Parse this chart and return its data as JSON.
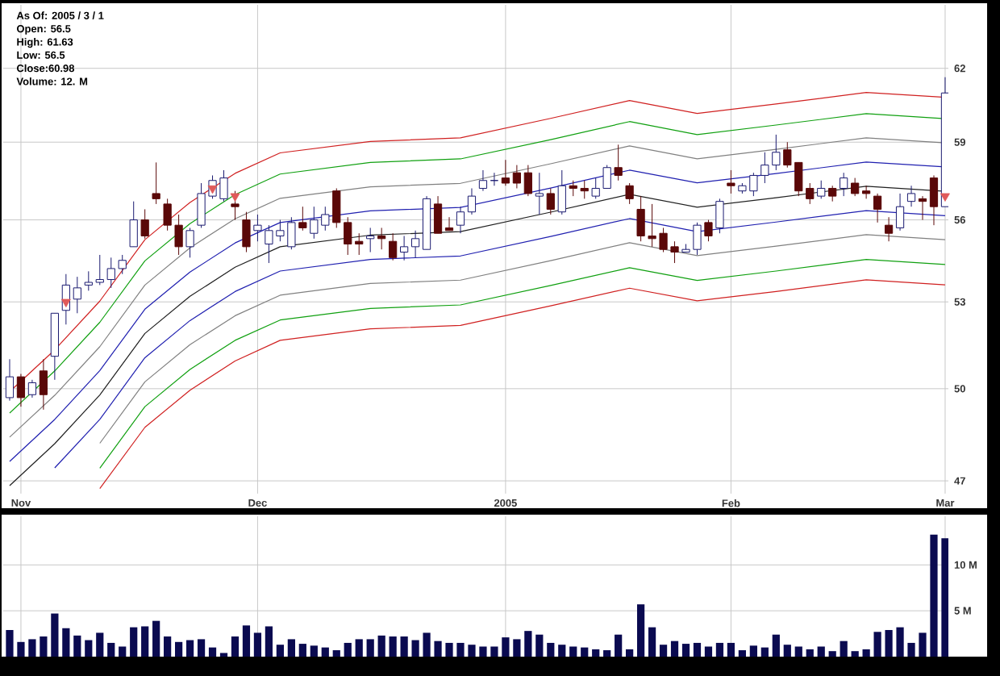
{
  "chart_data": [
    {
      "type": "candlestick",
      "log": true,
      "ylim": [
        46.6,
        64.7
      ],
      "yticks": [
        47,
        50,
        53,
        56,
        59,
        62
      ],
      "grid": true,
      "annotations": [
        "As Of: 2005 / 3 / 1",
        "Open: 56.5",
        "High: 61.63",
        "Low: 56.5",
        "Close:60.98",
        "Volume: 12. M"
      ],
      "categories": [
        null,
        "Nov",
        null,
        null,
        null,
        null,
        null,
        null,
        null,
        null,
        null,
        null,
        null,
        null,
        null,
        null,
        null,
        null,
        null,
        null,
        null,
        null,
        "Dec",
        null,
        null,
        null,
        null,
        null,
        null,
        null,
        null,
        null,
        null,
        null,
        null,
        null,
        null,
        null,
        null,
        null,
        null,
        null,
        null,
        null,
        "2005",
        null,
        null,
        null,
        null,
        null,
        null,
        null,
        null,
        null,
        null,
        null,
        null,
        null,
        null,
        null,
        null,
        null,
        null,
        null,
        "Feb",
        null,
        null,
        null,
        null,
        null,
        null,
        null,
        null,
        null,
        null,
        null,
        null,
        null,
        null,
        null,
        null,
        null,
        null,
        "Mar"
      ],
      "ohlc": [
        [
          49.7,
          51.0,
          49.6,
          50.4
        ],
        [
          50.4,
          50.5,
          49.4,
          49.7
        ],
        [
          49.8,
          50.3,
          49.7,
          50.2
        ],
        [
          50.6,
          51.0,
          49.3,
          49.8
        ],
        [
          51.1,
          52.6,
          50.3,
          52.6
        ],
        [
          52.7,
          54.0,
          52.2,
          53.6
        ],
        [
          53.1,
          53.9,
          52.6,
          53.5
        ],
        [
          53.6,
          54.1,
          53.4,
          53.7
        ],
        [
          53.7,
          54.7,
          53.6,
          53.8
        ],
        [
          53.8,
          54.6,
          53.5,
          54.2
        ],
        [
          54.2,
          54.7,
          54.0,
          54.5
        ],
        [
          55.0,
          56.7,
          55.0,
          56.0
        ],
        [
          56.0,
          56.4,
          55.3,
          55.4
        ],
        [
          57.0,
          58.2,
          56.6,
          56.8
        ],
        [
          56.6,
          56.8,
          55.6,
          55.8
        ],
        [
          55.8,
          56.2,
          54.7,
          55.0
        ],
        [
          55.0,
          55.7,
          54.6,
          55.6
        ],
        [
          55.8,
          57.4,
          55.7,
          57.0
        ],
        [
          56.9,
          57.7,
          56.8,
          57.5
        ],
        [
          56.8,
          57.9,
          56.7,
          57.6
        ],
        [
          56.6,
          57.1,
          56.0,
          56.5
        ],
        [
          56.0,
          56.3,
          54.8,
          55.0
        ],
        [
          55.6,
          56.2,
          55.2,
          55.8
        ],
        [
          55.1,
          55.8,
          54.4,
          55.6
        ],
        [
          55.4,
          56.0,
          55.2,
          55.6
        ],
        [
          55.0,
          56.1,
          54.9,
          55.9
        ],
        [
          55.9,
          56.5,
          55.6,
          55.7
        ],
        [
          55.5,
          56.5,
          55.3,
          56.0
        ],
        [
          55.8,
          56.5,
          55.6,
          56.2
        ],
        [
          57.1,
          57.2,
          55.7,
          55.9
        ],
        [
          55.9,
          56.1,
          54.7,
          55.1
        ],
        [
          55.2,
          55.5,
          54.7,
          55.1
        ],
        [
          55.3,
          55.7,
          54.8,
          55.4
        ],
        [
          55.4,
          55.7,
          54.9,
          55.3
        ],
        [
          55.2,
          55.5,
          54.5,
          54.6
        ],
        [
          54.8,
          55.4,
          54.5,
          55.0
        ],
        [
          55.0,
          55.6,
          54.6,
          55.3
        ],
        [
          54.9,
          56.9,
          54.9,
          56.8
        ],
        [
          56.6,
          56.9,
          55.5,
          55.5
        ],
        [
          55.7,
          56.1,
          55.6,
          55.6
        ],
        [
          55.8,
          56.5,
          55.5,
          56.3
        ],
        [
          56.3,
          57.2,
          56.2,
          56.9
        ],
        [
          57.2,
          57.9,
          57.1,
          57.5
        ],
        [
          57.5,
          57.8,
          57.3,
          57.5
        ],
        [
          57.6,
          58.3,
          57.3,
          57.4
        ],
        [
          57.8,
          58.1,
          57.2,
          57.4
        ],
        [
          57.8,
          58.1,
          56.9,
          57.0
        ],
        [
          56.9,
          57.8,
          56.2,
          57.0
        ],
        [
          57.0,
          57.2,
          56.2,
          56.4
        ],
        [
          56.3,
          57.9,
          56.2,
          57.3
        ],
        [
          57.3,
          57.5,
          56.9,
          57.2
        ],
        [
          57.2,
          57.5,
          56.8,
          57.1
        ],
        [
          56.9,
          57.6,
          56.8,
          57.2
        ],
        [
          57.2,
          58.1,
          57.2,
          58.0
        ],
        [
          58.0,
          58.9,
          57.5,
          57.7
        ],
        [
          57.3,
          57.4,
          56.6,
          56.8
        ],
        [
          56.4,
          56.9,
          55.2,
          55.4
        ],
        [
          55.4,
          56.6,
          55.0,
          55.3
        ],
        [
          55.5,
          55.7,
          54.8,
          54.9
        ],
        [
          55.0,
          55.2,
          54.4,
          54.8
        ],
        [
          54.8,
          55.1,
          54.8,
          54.9
        ],
        [
          54.9,
          55.9,
          54.7,
          55.8
        ],
        [
          55.9,
          56.0,
          55.2,
          55.4
        ],
        [
          55.7,
          56.8,
          55.5,
          56.7
        ],
        [
          57.4,
          57.9,
          57.0,
          57.3
        ],
        [
          57.1,
          57.4,
          57.0,
          57.3
        ],
        [
          57.1,
          57.8,
          56.9,
          57.7
        ],
        [
          57.7,
          58.6,
          57.4,
          58.1
        ],
        [
          58.1,
          59.3,
          57.9,
          58.6
        ],
        [
          58.7,
          59.0,
          58.0,
          58.1
        ],
        [
          58.2,
          58.2,
          56.9,
          57.1
        ],
        [
          57.2,
          57.4,
          56.6,
          56.8
        ],
        [
          56.9,
          57.5,
          56.8,
          57.2
        ],
        [
          57.2,
          57.3,
          56.7,
          56.9
        ],
        [
          57.2,
          57.8,
          56.9,
          57.6
        ],
        [
          57.4,
          57.6,
          56.9,
          57.0
        ],
        [
          57.1,
          57.3,
          56.8,
          57.0
        ],
        [
          56.9,
          57.0,
          55.9,
          56.4
        ],
        [
          55.8,
          56.1,
          55.2,
          55.5
        ],
        [
          55.7,
          57.0,
          55.6,
          56.5
        ],
        [
          56.7,
          57.3,
          56.5,
          57.0
        ],
        [
          56.8,
          56.9,
          56.0,
          56.7
        ],
        [
          57.6,
          57.7,
          55.8,
          56.5
        ],
        [
          56.5,
          61.63,
          56.5,
          60.98
        ]
      ],
      "series": [
        {
          "type": "line",
          "color": "#d02020",
          "values": [
            49.9,
            null,
            null,
            null,
            51.32,
            null,
            null,
            null,
            53.03,
            null,
            null,
            null,
            55.26,
            null,
            null,
            null,
            56.66,
            null,
            null,
            null,
            57.78,
            null,
            null,
            null,
            58.58,
            null,
            null,
            null,
            null,
            null,
            null,
            null,
            59.03,
            null,
            null,
            null,
            null,
            null,
            null,
            null,
            59.17,
            null,
            null,
            null,
            null,
            null,
            null,
            null,
            59.95,
            null,
            null,
            null,
            null,
            null,
            null,
            60.67,
            null,
            null,
            null,
            null,
            null,
            60.15,
            null,
            null,
            null,
            null,
            null,
            null,
            60.53,
            null,
            null,
            null,
            null,
            null,
            null,
            null,
            61.0,
            null,
            null,
            null,
            null,
            null,
            null,
            60.8
          ]
        },
        {
          "type": "line",
          "color": "#10a010",
          "values": [
            49.19,
            null,
            null,
            null,
            50.6,
            null,
            null,
            null,
            52.28,
            null,
            null,
            null,
            54.48,
            null,
            null,
            null,
            55.86,
            null,
            null,
            null,
            56.96,
            null,
            null,
            null,
            57.75,
            null,
            null,
            null,
            null,
            null,
            null,
            null,
            58.2,
            null,
            null,
            null,
            null,
            null,
            null,
            null,
            58.34,
            null,
            null,
            null,
            null,
            null,
            null,
            null,
            59.1,
            null,
            null,
            null,
            null,
            null,
            null,
            59.82,
            null,
            null,
            null,
            null,
            null,
            59.3,
            null,
            null,
            null,
            null,
            null,
            null,
            59.68,
            null,
            null,
            null,
            null,
            null,
            null,
            null,
            60.14,
            null,
            null,
            null,
            null,
            null,
            null,
            59.94
          ]
        },
        {
          "type": "line",
          "color": "#808080",
          "values": [
            48.4,
            null,
            null,
            null,
            49.78,
            null,
            null,
            null,
            51.43,
            null,
            null,
            null,
            53.6,
            null,
            null,
            null,
            54.96,
            null,
            null,
            null,
            56.04,
            null,
            null,
            null,
            56.82,
            null,
            null,
            null,
            null,
            null,
            null,
            null,
            57.26,
            null,
            null,
            null,
            null,
            null,
            null,
            null,
            57.39,
            null,
            null,
            null,
            null,
            null,
            null,
            null,
            58.15,
            null,
            null,
            null,
            null,
            null,
            null,
            58.85,
            null,
            null,
            null,
            null,
            null,
            58.34,
            null,
            null,
            null,
            null,
            null,
            null,
            58.72,
            null,
            null,
            null,
            null,
            null,
            null,
            null,
            59.17,
            null,
            null,
            null,
            null,
            null,
            null,
            58.97
          ]
        },
        {
          "type": "line",
          "color": "#2020b0",
          "values": [
            47.62,
            null,
            null,
            null,
            48.98,
            null,
            null,
            null,
            50.61,
            null,
            null,
            null,
            52.74,
            null,
            null,
            null,
            54.07,
            null,
            null,
            null,
            55.14,
            null,
            null,
            null,
            55.9,
            null,
            null,
            null,
            null,
            null,
            null,
            null,
            56.34,
            null,
            null,
            null,
            null,
            null,
            null,
            null,
            56.47,
            null,
            null,
            null,
            null,
            null,
            null,
            null,
            57.21,
            null,
            null,
            null,
            null,
            null,
            null,
            57.9,
            null,
            null,
            null,
            null,
            null,
            57.41,
            null,
            null,
            null,
            null,
            null,
            null,
            57.77,
            null,
            null,
            null,
            null,
            null,
            null,
            null,
            58.22,
            null,
            null,
            null,
            null,
            null,
            null,
            58.03
          ]
        },
        {
          "type": "line",
          "color": "#202020",
          "values": [
            46.85,
            null,
            null,
            null,
            48.19,
            null,
            null,
            null,
            49.79,
            null,
            null,
            null,
            51.89,
            null,
            null,
            null,
            53.2,
            null,
            null,
            null,
            54.25,
            null,
            null,
            null,
            55.0,
            null,
            null,
            null,
            null,
            null,
            null,
            null,
            55.43,
            null,
            null,
            null,
            null,
            null,
            null,
            null,
            55.56,
            null,
            null,
            null,
            null,
            null,
            null,
            null,
            56.29,
            null,
            null,
            null,
            null,
            null,
            null,
            56.97,
            null,
            null,
            null,
            null,
            null,
            56.48,
            null,
            null,
            null,
            null,
            null,
            null,
            56.84,
            null,
            null,
            null,
            null,
            null,
            null,
            null,
            57.28,
            null,
            null,
            null,
            null,
            null,
            null,
            57.09
          ]
        },
        {
          "type": "line",
          "color": "#2020b0",
          "values": [
            null,
            null,
            null,
            null,
            47.41,
            null,
            null,
            null,
            48.98,
            null,
            null,
            null,
            51.05,
            null,
            null,
            null,
            52.34,
            null,
            null,
            null,
            53.37,
            null,
            null,
            null,
            54.11,
            null,
            null,
            null,
            null,
            null,
            null,
            null,
            54.53,
            null,
            null,
            null,
            null,
            null,
            null,
            null,
            54.66,
            null,
            null,
            null,
            null,
            null,
            null,
            null,
            55.38,
            null,
            null,
            null,
            null,
            null,
            null,
            56.05,
            null,
            null,
            null,
            null,
            null,
            55.56,
            null,
            null,
            null,
            null,
            null,
            null,
            55.92,
            null,
            null,
            null,
            null,
            null,
            null,
            null,
            56.35,
            null,
            null,
            null,
            null,
            null,
            null,
            56.16
          ]
        },
        {
          "type": "line",
          "color": "#808080",
          "values": [
            null,
            null,
            null,
            null,
            null,
            null,
            null,
            null,
            48.2,
            null,
            null,
            null,
            50.23,
            null,
            null,
            null,
            51.5,
            null,
            null,
            null,
            52.51,
            null,
            null,
            null,
            53.24,
            null,
            null,
            null,
            null,
            null,
            null,
            null,
            53.66,
            null,
            null,
            null,
            null,
            null,
            null,
            null,
            53.78,
            null,
            null,
            null,
            null,
            null,
            null,
            null,
            54.49,
            null,
            null,
            null,
            null,
            null,
            null,
            55.15,
            null,
            null,
            null,
            null,
            null,
            54.67,
            null,
            null,
            null,
            null,
            null,
            null,
            55.02,
            null,
            null,
            null,
            null,
            null,
            null,
            null,
            55.45,
            null,
            null,
            null,
            null,
            null,
            null,
            55.26
          ]
        },
        {
          "type": "line",
          "color": "#10a010",
          "values": [
            null,
            null,
            null,
            null,
            null,
            null,
            null,
            null,
            47.4,
            null,
            null,
            null,
            49.4,
            null,
            null,
            null,
            50.65,
            null,
            null,
            null,
            51.65,
            null,
            null,
            null,
            52.36,
            null,
            null,
            null,
            null,
            null,
            null,
            null,
            52.77,
            null,
            null,
            null,
            null,
            null,
            null,
            null,
            52.89,
            null,
            null,
            null,
            null,
            null,
            null,
            null,
            53.59,
            null,
            null,
            null,
            null,
            null,
            null,
            54.23,
            null,
            null,
            null,
            null,
            null,
            53.77,
            null,
            null,
            null,
            null,
            null,
            null,
            54.11,
            null,
            null,
            null,
            null,
            null,
            null,
            null,
            54.53,
            null,
            null,
            null,
            null,
            null,
            null,
            54.35
          ]
        },
        {
          "type": "line",
          "color": "#d02020",
          "values": [
            null,
            null,
            null,
            null,
            null,
            null,
            null,
            null,
            46.76,
            null,
            null,
            null,
            48.72,
            null,
            null,
            null,
            49.95,
            null,
            null,
            null,
            50.94,
            null,
            null,
            null,
            51.65,
            null,
            null,
            null,
            null,
            null,
            null,
            null,
            52.05,
            null,
            null,
            null,
            null,
            null,
            null,
            null,
            52.17,
            null,
            null,
            null,
            null,
            null,
            null,
            null,
            52.86,
            null,
            null,
            null,
            null,
            null,
            null,
            53.49,
            null,
            null,
            null,
            null,
            null,
            53.04,
            null,
            null,
            null,
            null,
            null,
            null,
            53.37,
            null,
            null,
            null,
            null,
            null,
            null,
            null,
            53.79,
            null,
            null,
            null,
            null,
            null,
            null,
            53.61
          ]
        },
        {
          "type": "scatter",
          "color": "#e05a5a",
          "marker": "triangle",
          "values": [
            null,
            null,
            null,
            null,
            null,
            53.0,
            null,
            null,
            null,
            null,
            null,
            null,
            null,
            null,
            null,
            null,
            null,
            null,
            57.2,
            null,
            56.9,
            null,
            null,
            null,
            null,
            null,
            null,
            null,
            null,
            null,
            null,
            null,
            null,
            null,
            null,
            null,
            null,
            null,
            null,
            null,
            null,
            null,
            null,
            null,
            null,
            null,
            null,
            null,
            null,
            null,
            null,
            null,
            null,
            null,
            null,
            null,
            null,
            null,
            null,
            null,
            null,
            null,
            null,
            null,
            null,
            null,
            null,
            null,
            null,
            null,
            null,
            null,
            null,
            null,
            null,
            null,
            null,
            null,
            null,
            null,
            null,
            null,
            null,
            56.9
          ]
        }
      ]
    },
    {
      "type": "bar",
      "color": "#0a0a50",
      "ylim": [
        0,
        15.3
      ],
      "yticks": [
        {
          "value": 5,
          "label": "5 M"
        },
        {
          "value": 10,
          "label": "10 M"
        }
      ],
      "grid": true,
      "tick_labels": "y",
      "categories": [
        null,
        null,
        null,
        null,
        null,
        null,
        null,
        null,
        null,
        null,
        null,
        null,
        null,
        null,
        null,
        null,
        null,
        null,
        null,
        null,
        null,
        null,
        null,
        null,
        null,
        null,
        null,
        null,
        null,
        null,
        null,
        null,
        null,
        null,
        null,
        null,
        null,
        null,
        null,
        null,
        null,
        null,
        null,
        null,
        null,
        null,
        null,
        null,
        null,
        null,
        null,
        null,
        null,
        null,
        null,
        null,
        null,
        null,
        null,
        null,
        null,
        null,
        null,
        null,
        null,
        null,
        null,
        null,
        null,
        null,
        null,
        null,
        null,
        null,
        null,
        null,
        null,
        null,
        null,
        null,
        null,
        null,
        null,
        null
      ],
      "values": [
        2.9,
        1.6,
        1.9,
        2.2,
        4.7,
        3.1,
        2.3,
        1.8,
        2.6,
        1.5,
        1.1,
        3.2,
        3.3,
        3.9,
        2.2,
        1.6,
        1.8,
        1.9,
        1.0,
        0.4,
        2.2,
        3.4,
        2.6,
        3.3,
        1.3,
        1.9,
        1.4,
        1.2,
        1.0,
        0.7,
        1.5,
        1.9,
        1.9,
        2.3,
        2.2,
        2.2,
        1.8,
        2.6,
        1.7,
        1.5,
        1.5,
        1.3,
        1.1,
        1.1,
        2.1,
        1.9,
        2.8,
        2.4,
        1.5,
        1.3,
        1.1,
        1.0,
        0.8,
        0.7,
        2.4,
        0.8,
        5.7,
        3.2,
        1.3,
        1.7,
        1.4,
        1.5,
        1.1,
        1.5,
        1.5,
        0.7,
        1.2,
        1.0,
        2.4,
        1.3,
        1.1,
        0.8,
        1.1,
        0.6,
        1.7,
        0.6,
        0.8,
        2.7,
        2.9,
        3.2,
        1.5,
        2.6,
        13.3,
        12.9
      ]
    }
  ]
}
